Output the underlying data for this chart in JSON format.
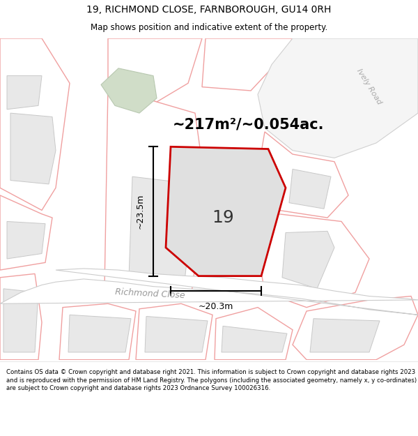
{
  "title_line1": "19, RICHMOND CLOSE, FARNBOROUGH, GU14 0RH",
  "title_line2": "Map shows position and indicative extent of the property.",
  "area_text": "~217m²/~0.054ac.",
  "dimension_width": "~20.3m",
  "dimension_height": "~23.5m",
  "label_number": "19",
  "road_label": "Richmond Close",
  "road_label2": "Ively Road",
  "footer_text": "Contains OS data © Crown copyright and database right 2021. This information is subject to Crown copyright and database rights 2023 and is reproduced with the permission of HM Land Registry. The polygons (including the associated geometry, namely x, y co-ordinates) are subject to Crown copyright and database rights 2023 Ordnance Survey 100026316.",
  "bg_color": "#ffffff",
  "map_bg_color": "#ffffff",
  "building_fill": "#e8e8e8",
  "building_edge": "#c8c8c8",
  "plot_boundary_color": "#f0a0a0",
  "plot_fill_color": "#e8e8e8",
  "prop_fill_color": "#e0e0e0",
  "prop_edge_color": "#cc0000",
  "green_fill": "#d0ddc8",
  "green_edge": "#b8c8b0",
  "road_text_color": "#aaaaaa",
  "dim_color": "#000000",
  "label_color": "#333333"
}
